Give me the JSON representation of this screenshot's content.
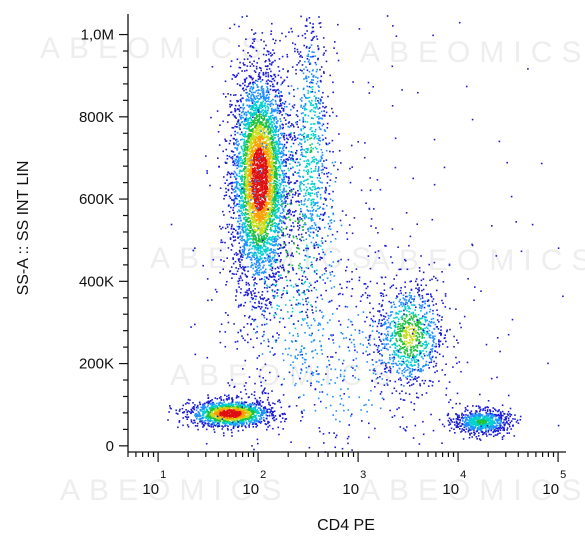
{
  "chart_data": {
    "type": "scatter",
    "subtype": "flow cytometry density dot plot",
    "xlabel": "CD4 PE",
    "ylabel": "SS-A :: SS INT LIN",
    "x_scale": "log",
    "xlim": [
      5,
      120000
    ],
    "x_ticks": [
      {
        "value": 10,
        "base": "10",
        "exp": "1"
      },
      {
        "value": 100,
        "base": "10",
        "exp": "2"
      },
      {
        "value": 1000,
        "base": "10",
        "exp": "3"
      },
      {
        "value": 10000,
        "base": "10",
        "exp": "4"
      },
      {
        "value": 100000,
        "base": "10",
        "exp": "5"
      }
    ],
    "ylim": [
      -15000,
      1050000
    ],
    "y_ticks": [
      {
        "value": 0,
        "label": "0"
      },
      {
        "value": 200000,
        "label": "200K"
      },
      {
        "value": 400000,
        "label": "400K"
      },
      {
        "value": 600000,
        "label": "600K"
      },
      {
        "value": 800000,
        "label": "800K"
      },
      {
        "value": 1000000,
        "label": "1,0M"
      }
    ],
    "grid": false,
    "colormap": [
      "#1a1ad6",
      "#1e90ff",
      "#00d0d0",
      "#20c040",
      "#c8dc14",
      "#ffa000",
      "#e01010"
    ],
    "populations": [
      {
        "x_center": 102,
        "y_center": 650000,
        "x_spread_log": 0.14,
        "y_spread": 130000,
        "count": 4200
      },
      {
        "x_center": 52,
        "y_center": 80000,
        "x_spread_log": 0.2,
        "y_spread": 16000,
        "count": 1400
      },
      {
        "x_center": 17000,
        "y_center": 60000,
        "x_spread_log": 0.14,
        "y_spread": 15000,
        "count": 700
      },
      {
        "x_center": 3200,
        "y_center": 270000,
        "x_spread_log": 0.17,
        "y_spread": 65000,
        "count": 900
      },
      {
        "x_center": 330,
        "y_center": 730000,
        "x_spread_log": 0.09,
        "y_spread": 180000,
        "count": 650
      },
      {
        "x_center": 210,
        "y_center": 520000,
        "x_spread_log": 0.35,
        "y_spread": 260000,
        "count": 700
      },
      {
        "x_center": 700,
        "y_center": 200000,
        "x_spread_log": 0.6,
        "y_spread": 130000,
        "count": 450
      },
      {
        "x_center": 2000,
        "y_center": 450000,
        "x_spread_log": 0.9,
        "y_spread": 300000,
        "count": 180
      }
    ]
  },
  "watermark": "ABEOMICS"
}
